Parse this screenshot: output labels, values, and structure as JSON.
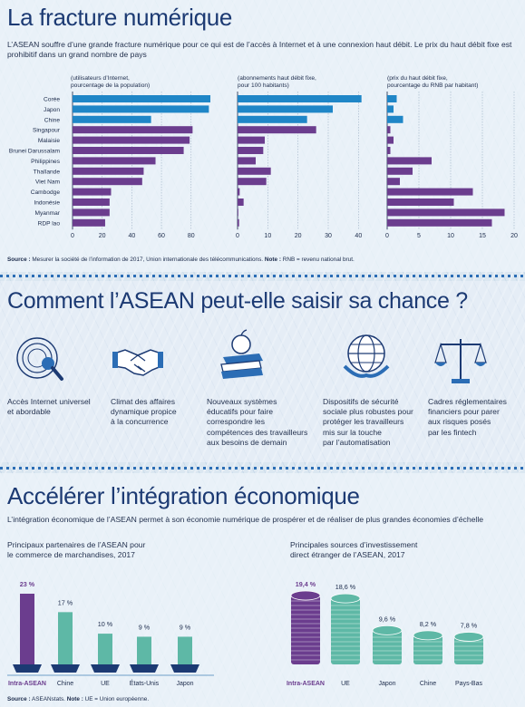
{
  "section1": {
    "title": "La fracture numérique",
    "intro": "L’ASEAN souffre d’une grande fracture numérique pour ce qui est de l’accès à Internet et à une connexion haut débit. Le prix du haut débit fixe est prohibitif dans un grand nombre de pays",
    "source_label": "Source :",
    "source_text": " Mesurer la société de l’information de 2017, Union internationale des télécommunications. ",
    "note_label": "Note :",
    "note_text": " RNB = revenu national brut."
  },
  "colors": {
    "highlight": "#1f86c7",
    "normal": "#6b3d8e",
    "title": "#1c3a73",
    "investment": "#5eb8a6"
  },
  "chart_data": [
    {
      "type": "bar",
      "orientation": "horizontal",
      "title": "(utilisateurs d’Internet, pourcentage de la population)",
      "categories": [
        "Corée",
        "Japon",
        "Chine",
        "Singapour",
        "Malaisie",
        "Brunei Darussalam",
        "Philippines",
        "Thaïlande",
        "Viet Nam",
        "Cambodge",
        "Indonésie",
        "Myanmar",
        "RDP lao"
      ],
      "values": [
        93,
        92,
        53,
        81,
        79,
        75,
        56,
        48,
        47,
        26,
        25,
        25,
        22
      ],
      "highlighted": [
        true,
        true,
        true,
        false,
        false,
        false,
        false,
        false,
        false,
        false,
        false,
        false,
        false
      ],
      "xlim": [
        0,
        93
      ],
      "ticks": [
        0,
        20,
        40,
        60,
        80
      ]
    },
    {
      "type": "bar",
      "orientation": "horizontal",
      "title": "(abonnements haut débit fixe, pour 100 habitants)",
      "categories": [
        "Corée",
        "Japon",
        "Chine",
        "Singapour",
        "Malaisie",
        "Brunei Darussalam",
        "Philippines",
        "Thaïlande",
        "Viet Nam",
        "Cambodge",
        "Indonésie",
        "Myanmar",
        "RDP lao"
      ],
      "values": [
        41,
        31.5,
        23,
        26,
        9,
        8.5,
        6,
        11,
        9.5,
        0.7,
        2,
        0.2,
        0.5
      ],
      "highlighted": [
        true,
        true,
        true,
        false,
        false,
        false,
        false,
        false,
        false,
        false,
        false,
        false,
        false
      ],
      "xlim": [
        0,
        42
      ],
      "ticks": [
        0,
        10,
        20,
        30,
        40
      ]
    },
    {
      "type": "bar",
      "orientation": "horizontal",
      "title": "(prix du haut débit fixe, pourcentage du RNB par habitant)",
      "categories": [
        "Corée",
        "Japon",
        "Chine",
        "Singapour",
        "Malaisie",
        "Brunei Darussalam",
        "Philippines",
        "Thaïlande",
        "Viet Nam",
        "Cambodge",
        "Indonésie",
        "Myanmar",
        "RDP lao"
      ],
      "values": [
        1.5,
        1,
        2.5,
        0.5,
        1,
        0.5,
        7,
        4,
        2,
        13.5,
        10.5,
        18.5,
        16.5
      ],
      "highlighted": [
        true,
        true,
        true,
        false,
        false,
        false,
        false,
        false,
        false,
        false,
        false,
        false,
        false
      ],
      "xlim": [
        0,
        20
      ],
      "ticks": [
        0,
        5,
        10,
        15,
        20
      ]
    },
    {
      "type": "bar",
      "title": "Principaux partenaires de l’ASEAN pour le commerce de marchandises, 2017",
      "categories": [
        "Intra-ASEAN",
        "Chine",
        "UE",
        "États-Unis",
        "Japon"
      ],
      "values": [
        23,
        17,
        10,
        9,
        9
      ],
      "labels": [
        "23 %",
        "17 %",
        "10 %",
        "9 %",
        "9 %"
      ],
      "unit": "%"
    },
    {
      "type": "bar",
      "title": "Principales sources d’investissement direct étranger de l’ASEAN, 2017",
      "categories": [
        "Intra-ASEAN",
        "UE",
        "Japon",
        "Chine",
        "Pays-Bas"
      ],
      "values": [
        19.4,
        18.6,
        9.6,
        8.2,
        7.8
      ],
      "labels": [
        "19,4 %",
        "18,6 %",
        "9,6 %",
        "8,2 %",
        "7,8 %"
      ],
      "unit": "%"
    }
  ],
  "section2": {
    "title": "Comment l’ASEAN peut-elle saisir sa chance ?",
    "items": [
      {
        "icon": "magnifier-icon",
        "label": "Accès Internet universel\net abordable"
      },
      {
        "icon": "handshake-icon",
        "label": "Climat des affaires\ndynamique propice\nà la concurrence"
      },
      {
        "icon": "books-apple-icon",
        "label": "Nouveaux systèmes\néducatifs pour faire\ncorrespondre les\ncompétences des travailleurs\naux besoins de demain"
      },
      {
        "icon": "globe-icon",
        "label": "Dispositifs de sécurité\nsociale plus robustes pour\nprotéger les travailleurs\nmis sur la touche\npar l’automatisation"
      },
      {
        "icon": "scales-icon",
        "label": "Cadres réglementaires\nfinanciers pour parer\naux risques posés\npar les fintech"
      }
    ]
  },
  "section3": {
    "title": "Accélérer l’intégration économique",
    "intro": "L’intégration économique de l’ASEAN permet à son économie numérique de prospérer et de réaliser de plus grandes économies d’échelle",
    "trade_title": "Principaux partenaires de l’ASEAN pour\nle commerce de marchandises, 2017",
    "fdi_title": "Principales sources d’investissement\ndirect étranger de l’ASEAN, 2017",
    "source_label": "Source :",
    "source_text": " ASEANstats. ",
    "note_label": "Note :",
    "note_text": " UE = Union européenne."
  }
}
